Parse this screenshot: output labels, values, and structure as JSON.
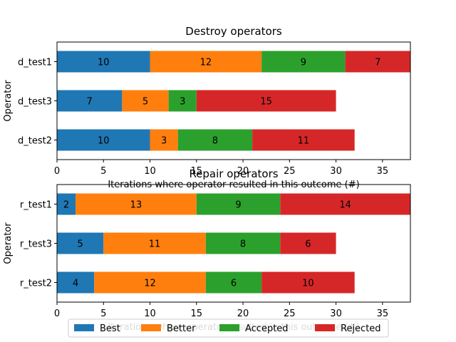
{
  "chart_data": [
    {
      "type": "bar",
      "orientation": "horizontal",
      "stacked": true,
      "title": "Destroy operators",
      "xlabel": "Iterations where operator resulted in this outcome (#)",
      "ylabel": "Operator",
      "xlim": [
        0,
        38
      ],
      "xticks": [
        0,
        5,
        10,
        15,
        20,
        25,
        30,
        35
      ],
      "categories": [
        "d_test1",
        "d_test3",
        "d_test2"
      ],
      "series": [
        {
          "name": "Best",
          "values": [
            10,
            7,
            10
          ]
        },
        {
          "name": "Better",
          "values": [
            12,
            5,
            3
          ]
        },
        {
          "name": "Accepted",
          "values": [
            9,
            3,
            8
          ]
        },
        {
          "name": "Rejected",
          "values": [
            7,
            15,
            11
          ]
        }
      ],
      "grid": false
    },
    {
      "type": "bar",
      "orientation": "horizontal",
      "stacked": true,
      "title": "Repair operators",
      "xlabel": "Iterations where operator resulted in this outcome (#)",
      "ylabel": "Operator",
      "xlim": [
        0,
        38
      ],
      "xticks": [
        0,
        5,
        10,
        15,
        20,
        25,
        30,
        35
      ],
      "categories": [
        "r_test1",
        "r_test3",
        "r_test2"
      ],
      "series": [
        {
          "name": "Best",
          "values": [
            2,
            5,
            4
          ]
        },
        {
          "name": "Better",
          "values": [
            13,
            11,
            12
          ]
        },
        {
          "name": "Accepted",
          "values": [
            9,
            8,
            6
          ]
        },
        {
          "name": "Rejected",
          "values": [
            14,
            6,
            10
          ]
        }
      ],
      "grid": false
    }
  ],
  "colors": [
    "#1f77b4",
    "#ff7f0e",
    "#2ca02c",
    "#d62728"
  ],
  "legend": {
    "placement": "bottom-center",
    "items": [
      "Best",
      "Better",
      "Accepted",
      "Rejected"
    ]
  }
}
